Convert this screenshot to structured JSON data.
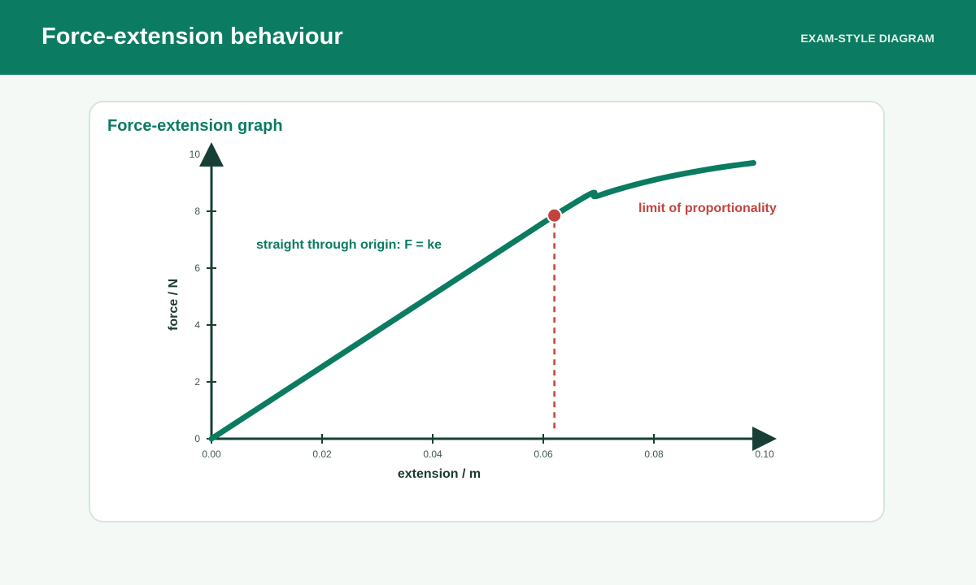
{
  "header": {
    "title": "Force-extension behaviour",
    "tag": "EXAM-STYLE DIAGRAM"
  },
  "card": {
    "title": "Force-extension graph"
  },
  "colors": {
    "header_bg": "#0b7b62",
    "curve": "#0b7b62",
    "axis": "#173f35",
    "limit_marker": "#c4433f"
  },
  "chart_data": {
    "type": "line",
    "xlabel": "extension / m",
    "ylabel": "force / N",
    "xlim": [
      0,
      0.1
    ],
    "ylim": [
      0,
      10
    ],
    "x_ticks": [
      "0.00",
      "0.02",
      "0.04",
      "0.06",
      "0.08",
      "0.10"
    ],
    "y_ticks": [
      "0",
      "2",
      "4",
      "6",
      "8",
      "10"
    ],
    "grid": false,
    "series": [
      {
        "x": [
          0,
          0.062,
          0.07,
          0.08,
          0.09,
          0.098
        ],
        "y": [
          0,
          7.85,
          8.55,
          9.1,
          9.48,
          9.7
        ]
      }
    ],
    "limit_point": {
      "x": 0.062,
      "y": 7.85
    },
    "annotations": {
      "linear_region": "straight through origin: F = ke",
      "limit": "limit of proportionality"
    }
  }
}
